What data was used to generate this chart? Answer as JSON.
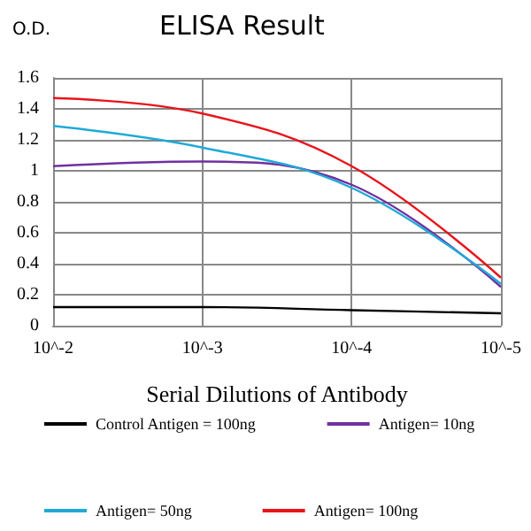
{
  "chart_data": {
    "type": "line",
    "title": "ELISA Result",
    "ylabel": "O.D.",
    "xlabel": "Serial Dilutions of Antibody",
    "categories": [
      "10^-2",
      "10^-3",
      "10^-4",
      "10^-5"
    ],
    "series": [
      {
        "name": "Control Antigen = 100ng",
        "color": "#000000",
        "values": [
          0.12,
          0.12,
          0.1,
          0.08
        ]
      },
      {
        "name": "Antigen= 10ng",
        "color": "#7030a0",
        "values": [
          1.03,
          1.06,
          0.91,
          0.25
        ]
      },
      {
        "name": "Antigen= 50ng",
        "color": "#1fa9d8",
        "values": [
          1.29,
          1.15,
          0.89,
          0.27
        ]
      },
      {
        "name": "Antigen= 100ng",
        "color": "#e8141c",
        "values": [
          1.47,
          1.37,
          1.03,
          0.31
        ]
      }
    ],
    "ylim": [
      0,
      1.6
    ],
    "yticks": [
      0,
      0.2,
      0.4,
      0.6,
      0.8,
      1,
      1.2,
      1.4,
      1.6
    ],
    "grid": true,
    "legend": "bottom",
    "marker": "none",
    "line_style": "solid"
  }
}
